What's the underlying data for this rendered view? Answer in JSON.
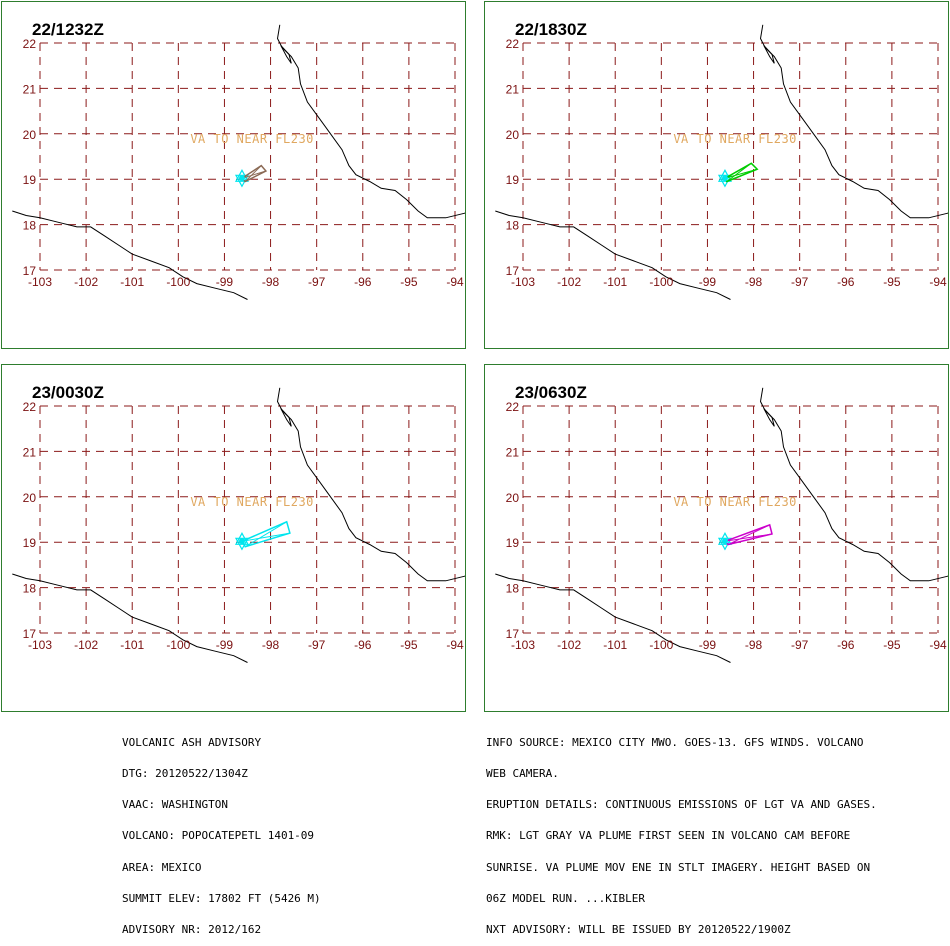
{
  "map": {
    "lon_ticks": [
      -103,
      -102,
      -101,
      -100,
      -99,
      -98,
      -97,
      -96,
      -95,
      -94
    ],
    "lat_ticks": [
      22,
      21,
      20,
      19,
      18,
      17
    ],
    "lon_range": [
      -103.4,
      -93.5
    ],
    "lat_range": [
      16.7,
      22.4
    ],
    "volcano": {
      "name": "POPOCATEPETL",
      "lon": -98.62,
      "lat": 19.02
    },
    "annotation": "VA TO NEAR FL230",
    "colors": {
      "grid": "#8b1a1a",
      "tick_labels": "#7a1010",
      "coast": "#000000",
      "annotation": "#e0a860",
      "volcano_marker": "#00e5ee",
      "border": "#2e7d2e"
    }
  },
  "panels": [
    {
      "time": "22/1232Z",
      "plume_color": "#8b6a55",
      "plume": [
        [
          -98.62,
          19.02
        ],
        [
          -98.2,
          19.3
        ],
        [
          -98.1,
          19.18
        ],
        [
          -98.55,
          18.95
        ]
      ]
    },
    {
      "time": "22/1830Z",
      "plume_color": "#00cc00",
      "plume": [
        [
          -98.62,
          19.02
        ],
        [
          -98.05,
          19.35
        ],
        [
          -97.92,
          19.22
        ],
        [
          -98.58,
          18.95
        ]
      ]
    },
    {
      "time": "23/0030Z",
      "plume_color": "#00e5ee",
      "plume": [
        [
          -98.62,
          19.02
        ],
        [
          -97.65,
          19.45
        ],
        [
          -97.58,
          19.2
        ],
        [
          -98.55,
          18.9
        ]
      ]
    },
    {
      "time": "23/0630Z",
      "plume_color": "#cc00cc",
      "plume": [
        [
          -98.62,
          19.02
        ],
        [
          -97.65,
          19.38
        ],
        [
          -97.6,
          19.18
        ],
        [
          -98.55,
          18.95
        ]
      ]
    }
  ],
  "footer_left": [
    "VOLCANIC ASH ADVISORY",
    "DTG: 20120522/1304Z",
    "VAAC: WASHINGTON",
    "VOLCANO: POPOCATEPETL 1401-09",
    "AREA: MEXICO",
    "SUMMIT ELEV: 17802 FT (5426 M)",
    "ADVISORY NR: 2012/162"
  ],
  "footer_right": [
    "INFO SOURCE: MEXICO CITY MWO. GOES-13. GFS WINDS. VOLCANO",
    "WEB CAMERA.",
    "ERUPTION DETAILS: CONTINUOUS EMISSIONS OF LGT VA AND GASES.",
    "RMK: LGT GRAY VA PLUME FIRST SEEN IN VOLCANO CAM BEFORE",
    "SUNRISE. VA PLUME MOV ENE IN STLT IMAGERY. HEIGHT BASED ON",
    "06Z MODEL RUN. ...KIBLER",
    "NXT ADVISORY: WILL BE ISSUED BY 20120522/1900Z"
  ]
}
